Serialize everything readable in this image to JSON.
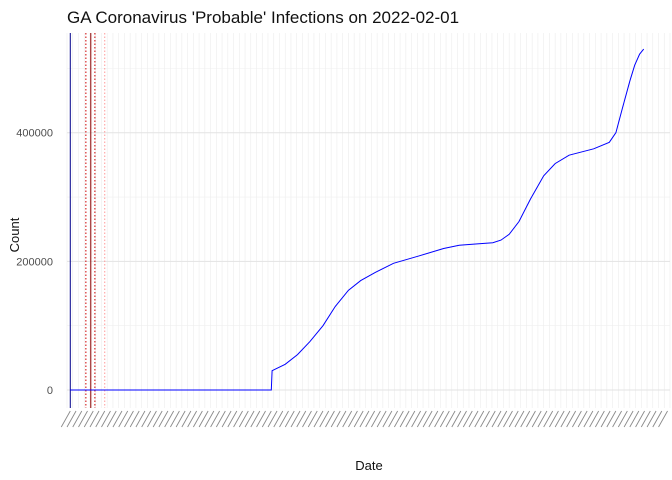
{
  "chart_data": {
    "type": "line",
    "title": "GA Coronavirus 'Probable' Infections on 2022-02-01",
    "xlabel": "Date",
    "ylabel": "Count",
    "ylim": [
      -28000,
      555000
    ],
    "xlim": [
      "2020-02-28",
      "2022-03-04"
    ],
    "y_ticks": [
      0,
      200000,
      400000
    ],
    "y_tick_labels": [
      "0",
      "200000",
      "400000"
    ],
    "x_tick_labels_note": "x tick labels are illegible in the source (rotated, dense weekly date labels)",
    "grid": true,
    "line_color": "#0000ff",
    "vlines": [
      {
        "date": "2020-03-03",
        "color": "#00008b",
        "style": "solid"
      },
      {
        "date": "2020-03-22",
        "color": "#cc0000",
        "style": "dotted"
      },
      {
        "date": "2020-03-28",
        "color": "#8b0000",
        "style": "solid"
      },
      {
        "date": "2020-04-02",
        "color": "#cc0000",
        "style": "dotted"
      },
      {
        "date": "2020-04-14",
        "color": "#ff9999",
        "style": "dotted"
      }
    ],
    "series": [
      {
        "points": [
          [
            "2020-03-03",
            0
          ],
          [
            "2020-11-03",
            0
          ],
          [
            "2020-11-04",
            30000
          ],
          [
            "2020-11-20",
            40000
          ],
          [
            "2020-12-05",
            55000
          ],
          [
            "2020-12-20",
            75000
          ],
          [
            "2021-01-05",
            100000
          ],
          [
            "2021-01-20",
            130000
          ],
          [
            "2021-02-05",
            155000
          ],
          [
            "2021-02-20",
            170000
          ],
          [
            "2021-03-10",
            183000
          ],
          [
            "2021-04-01",
            197000
          ],
          [
            "2021-05-01",
            208000
          ],
          [
            "2021-06-01",
            220000
          ],
          [
            "2021-06-20",
            225000
          ],
          [
            "2021-07-10",
            227000
          ],
          [
            "2021-07-31",
            229000
          ],
          [
            "2021-08-10",
            233000
          ],
          [
            "2021-08-20",
            242000
          ],
          [
            "2021-09-01",
            262000
          ],
          [
            "2021-09-15",
            297000
          ],
          [
            "2021-10-01",
            333000
          ],
          [
            "2021-10-15",
            352000
          ],
          [
            "2021-11-01",
            365000
          ],
          [
            "2021-12-01",
            375000
          ],
          [
            "2021-12-20",
            385000
          ],
          [
            "2021-12-28",
            400000
          ],
          [
            "2022-01-05",
            438000
          ],
          [
            "2022-01-14",
            480000
          ],
          [
            "2022-01-20",
            505000
          ],
          [
            "2022-01-26",
            522000
          ],
          [
            "2022-01-31",
            530000
          ]
        ]
      }
    ]
  }
}
